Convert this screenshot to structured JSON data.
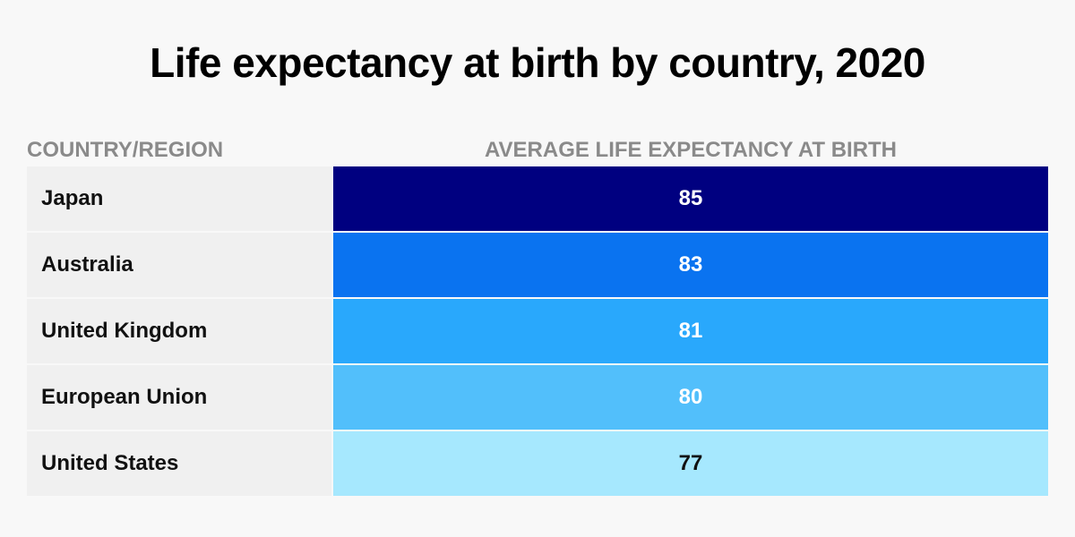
{
  "chart_data": {
    "type": "table",
    "title": "Life expectancy at birth by country, 2020",
    "columns": [
      "COUNTRY/REGION",
      "AVERAGE LIFE EXPECTANCY AT BIRTH"
    ],
    "rows": [
      {
        "country": "Japan",
        "value": 85,
        "color": "#000080",
        "text_color": "#ffffff"
      },
      {
        "country": "Australia",
        "value": 83,
        "color": "#0a73f0",
        "text_color": "#ffffff"
      },
      {
        "country": "United Kingdom",
        "value": 81,
        "color": "#29a8fc",
        "text_color": "#ffffff"
      },
      {
        "country": "European Union",
        "value": 80,
        "color": "#52bffb",
        "text_color": "#ffffff"
      },
      {
        "country": "United States",
        "value": 77,
        "color": "#a6e8fe",
        "text_color": "#111111"
      }
    ]
  }
}
